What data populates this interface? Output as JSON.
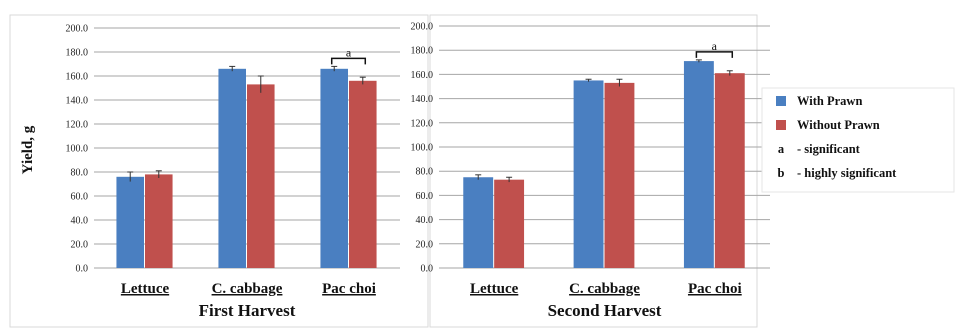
{
  "chart_data": [
    {
      "type": "bar",
      "title": "First Harvest",
      "ylabel": "Yield, g",
      "categories": [
        "Lettuce",
        "C. cabbage",
        "Pac choi"
      ],
      "series": [
        {
          "name": "With Prawn",
          "values": [
            76,
            166,
            166
          ],
          "errors": [
            4,
            2,
            2
          ]
        },
        {
          "name": "Without Prawn",
          "values": [
            78,
            153,
            156
          ],
          "errors": [
            3,
            7,
            3
          ]
        }
      ],
      "ylim": [
        0,
        200
      ],
      "yticks": [
        "0.0",
        "20.0",
        "40.0",
        "60.0",
        "80.0",
        "100.0",
        "120.0",
        "140.0",
        "160.0",
        "180.0",
        "200.0"
      ],
      "significance": [
        {
          "category": "Pac choi",
          "mark": "a"
        }
      ],
      "grid": true
    },
    {
      "type": "bar",
      "title": "Second Harvest",
      "categories": [
        "Lettuce",
        "C. cabbage",
        "Pac choi"
      ],
      "series": [
        {
          "name": "With Prawn",
          "values": [
            75,
            155,
            171
          ],
          "errors": [
            2,
            1,
            1
          ]
        },
        {
          "name": "Without Prawn",
          "values": [
            73,
            153,
            161
          ],
          "errors": [
            2,
            3,
            2
          ]
        }
      ],
      "ylim": [
        0,
        200
      ],
      "yticks": [
        "0.0",
        "20.0",
        "40.0",
        "60.0",
        "80.0",
        "100.0",
        "120.0",
        "140.0",
        "160.0",
        "180.0",
        "200.0"
      ],
      "significance": [
        {
          "category": "Pac choi",
          "mark": "a"
        }
      ],
      "grid": true
    }
  ],
  "legend": {
    "placement": "right",
    "items": [
      {
        "symbol": "swatch",
        "color": "#4a7fc1",
        "label": "With Prawn"
      },
      {
        "symbol": "swatch",
        "color": "#c0504d",
        "label": "Without Prawn"
      },
      {
        "symbol": "a",
        "label": "- significant"
      },
      {
        "symbol": "b",
        "label": "- highly significant"
      }
    ]
  },
  "colors": {
    "with_prawn": "#4a7fc1",
    "without_prawn": "#c0504d"
  }
}
